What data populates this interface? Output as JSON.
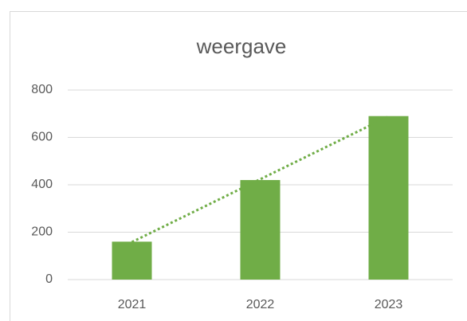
{
  "chart_data": {
    "type": "bar",
    "title": "weergave",
    "categories": [
      "2021",
      "2022",
      "2023"
    ],
    "values": [
      160,
      420,
      690
    ],
    "color": "#70ad47",
    "ylim": [
      0,
      800
    ],
    "yticks": [
      0,
      200,
      400,
      600,
      800
    ],
    "grid": true,
    "trendline": true
  }
}
